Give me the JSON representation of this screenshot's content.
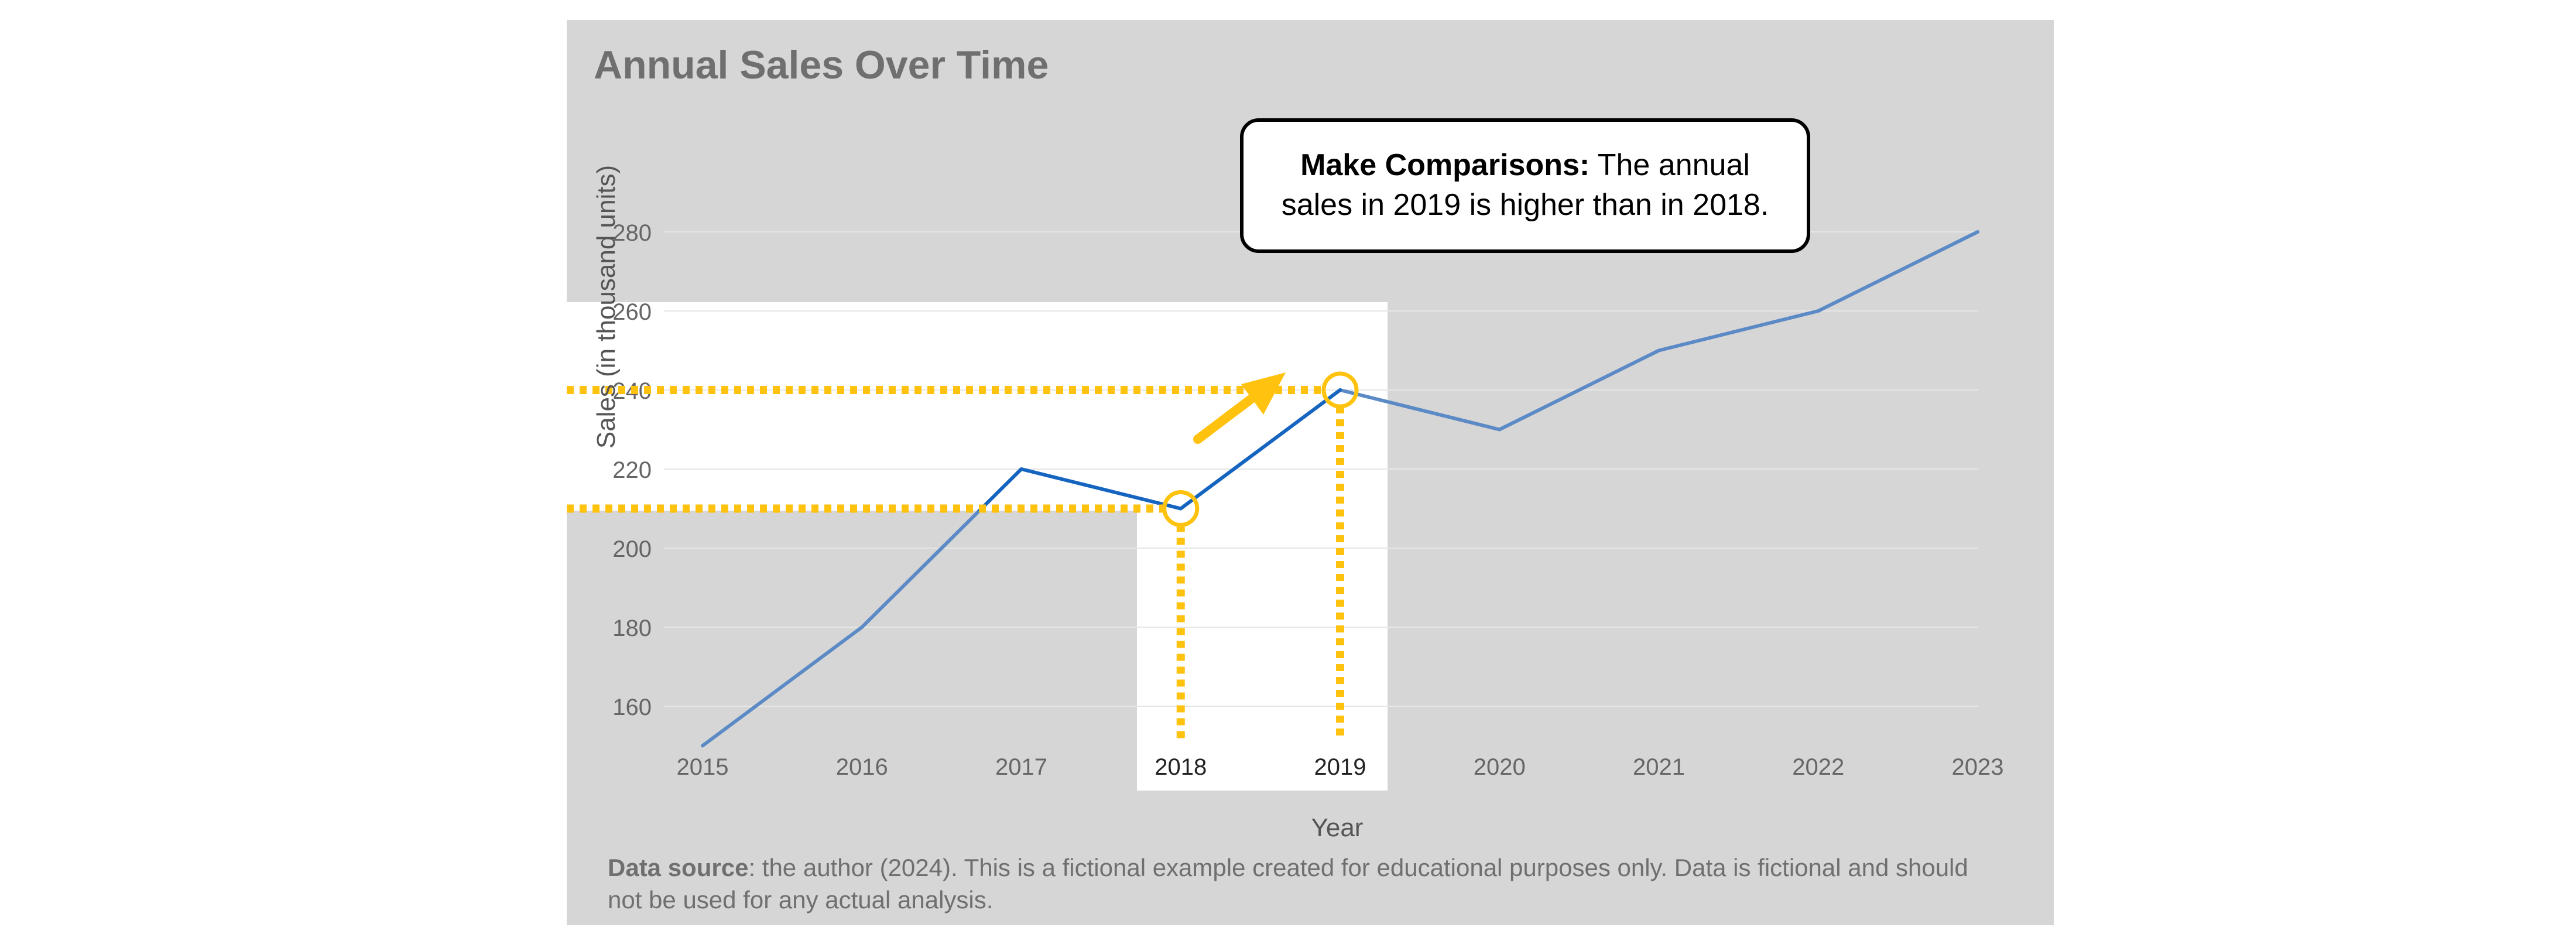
{
  "chart_data": {
    "type": "line",
    "title": "Annual Sales Over Time",
    "xlabel": "Year",
    "ylabel": "Sales (in thousand units)",
    "categories": [
      "2015",
      "2016",
      "2017",
      "2018",
      "2019",
      "2020",
      "2021",
      "2022",
      "2023"
    ],
    "series": [
      {
        "values": [
          150,
          180,
          220,
          210,
          240,
          230,
          250,
          260,
          280
        ]
      }
    ],
    "yticks": [
      160,
      180,
      200,
      220,
      240,
      260,
      280
    ],
    "ylim": [
      140,
      290
    ],
    "grid": true,
    "line_color": "#5b8ac6",
    "highlight_line_color": "#1565c0",
    "highlight_color": "#ffc20e",
    "highlight_points": [
      "2018",
      "2019"
    ],
    "annotation": {
      "bold": "Make Comparisons:",
      "text": "The annual sales in 2019 is higher than in 2018."
    }
  },
  "footer": {
    "source_label": "Data source",
    "source_text": ": the author (2024). This is a fictional example created for educational purposes only. Data is fictional and should not be used for any actual analysis."
  },
  "colors": {
    "panel_background": "#d6d6d6",
    "focus_background": "#ffffff",
    "title": "#6f6f6f",
    "gridline": "#e6e6e6"
  }
}
